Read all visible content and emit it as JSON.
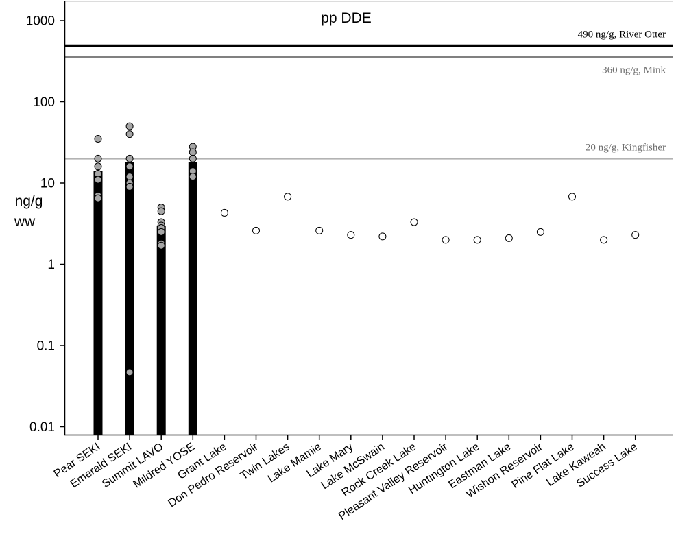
{
  "chart_data": {
    "type": "scatter",
    "title": "pp DDE",
    "ylabel_line1": "ng/g",
    "ylabel_line2": "ww",
    "yscale": "log",
    "ylim": [
      0.008,
      1000
    ],
    "ytick_values": [
      1000,
      100,
      10,
      1,
      0.1,
      0.01
    ],
    "ytick_labels": [
      "1000",
      "100",
      "10",
      "1",
      "0.1",
      "0.01"
    ],
    "categories": [
      "Pear SEKI",
      "Emerald SEKI",
      "Summit LAVO",
      "Mildred YOSE",
      "Grant Lake",
      "Don Pedro Reservoir",
      "Twin Lakes",
      "Lake Mamie",
      "Lake Mary",
      "Lake McSwain",
      "Rock Creek Lake",
      "Pleasant Valley Reservoir",
      "Huntington Lake",
      "Eastman Lake",
      "Wishon Reservoir",
      "Pine Flat Lake",
      "Lake Kaweah",
      "Success Lake"
    ],
    "bars": [
      {
        "category": "Pear SEKI",
        "value": 14
      },
      {
        "category": "Emerald SEKI",
        "value": 18
      },
      {
        "category": "Summit LAVO",
        "value": 3
      },
      {
        "category": "Mildred YOSE",
        "value": 18
      }
    ],
    "bar_points": [
      {
        "category": "Pear SEKI",
        "values": [
          35,
          20,
          16,
          13,
          11,
          7,
          6.5
        ]
      },
      {
        "category": "Emerald SEKI",
        "values": [
          50,
          40,
          20,
          16,
          12,
          10,
          9,
          0.047
        ]
      },
      {
        "category": "Summit LAVO",
        "values": [
          5,
          4.5,
          3.3,
          3,
          2.8,
          2.5,
          1.8,
          1.7
        ]
      },
      {
        "category": "Mildred YOSE",
        "values": [
          28,
          24,
          20,
          14,
          12
        ]
      }
    ],
    "lake_points": [
      {
        "category": "Grant Lake",
        "value": 4.3
      },
      {
        "category": "Don Pedro Reservoir",
        "value": 2.6
      },
      {
        "category": "Twin Lakes",
        "value": 6.8
      },
      {
        "category": "Lake Mamie",
        "value": 2.6
      },
      {
        "category": "Lake Mary",
        "value": 2.3
      },
      {
        "category": "Lake McSwain",
        "value": 2.2
      },
      {
        "category": "Rock Creek Lake",
        "value": 3.3
      },
      {
        "category": "Pleasant Valley Reservoir",
        "value": 2.0
      },
      {
        "category": "Huntington Lake",
        "value": 2.0
      },
      {
        "category": "Eastman Lake",
        "value": 2.1
      },
      {
        "category": "Wishon Reservoir",
        "value": 2.5
      },
      {
        "category": "Pine Flat Lake",
        "value": 6.8
      },
      {
        "category": "Lake Kaweah",
        "value": 2.0
      },
      {
        "category": "Success Lake",
        "value": 2.3
      }
    ],
    "reference_lines": [
      {
        "value": 490,
        "label": "490 ng/g, River Otter",
        "color": "#000000"
      },
      {
        "value": 360,
        "label": "360 ng/g, Mink",
        "color": "#808080"
      },
      {
        "value": 20,
        "label": "20 ng/g, Kingfisher",
        "color": "#b3b3b3"
      }
    ],
    "colors": {
      "bar": "#000000",
      "bar_point_fill": "#a6a6a6",
      "lake_point_fill": "#ffffff",
      "point_stroke": "#000000"
    }
  }
}
